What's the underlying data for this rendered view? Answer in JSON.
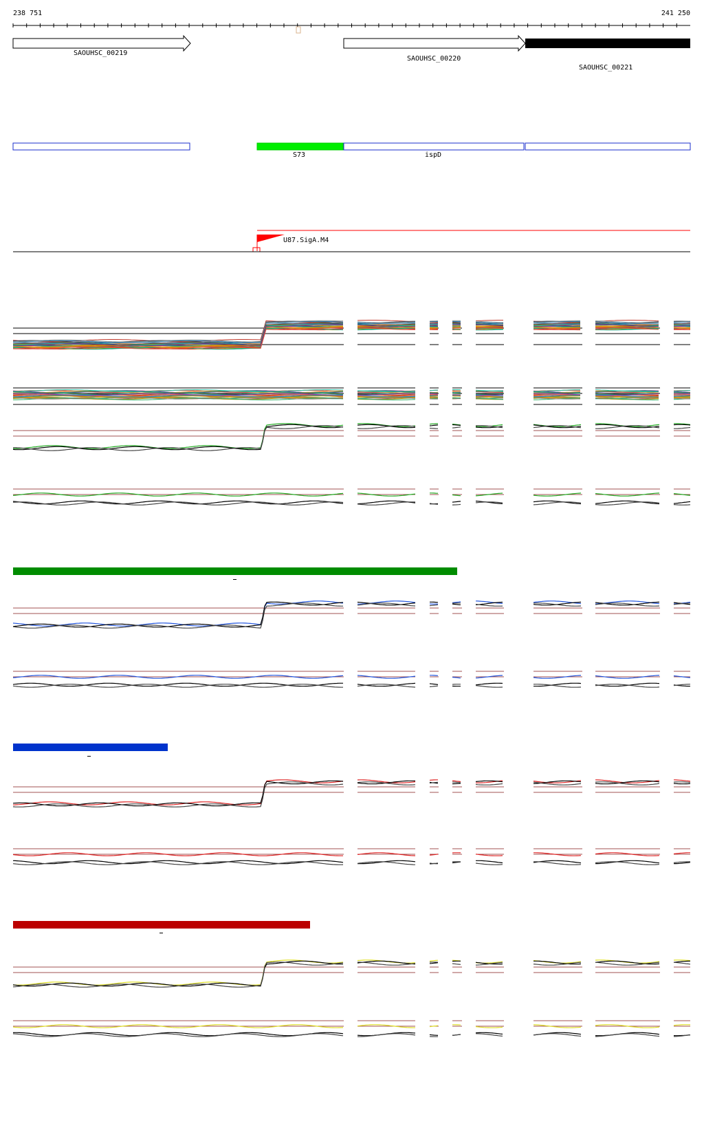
{
  "ruler": {
    "start_label": "238 751",
    "end_label": "241 250"
  },
  "genes": [
    {
      "name": "SAOUHSC_00219",
      "style": "outline"
    },
    {
      "name": "SAOUHSC_00220",
      "style": "outline"
    },
    {
      "name": "SAOUHSC_00221",
      "style": "filled"
    }
  ],
  "segments": [
    {
      "label": ""
    },
    {
      "label": "S73",
      "color": "#00ee00"
    },
    {
      "label": "ispD"
    },
    {
      "label": ""
    }
  ],
  "promoter": {
    "label": "U87.SigA.M4",
    "color": "#ff0000"
  },
  "condition_bars": [
    {
      "color": "#008c00"
    },
    {
      "color": "#0033cc"
    },
    {
      "color": "#bb0000"
    }
  ],
  "track_colors": {
    "heatmap_palette": [
      "#c0392b",
      "#e67e22",
      "#27ae60",
      "#2980b9",
      "#8e44ad",
      "#16a085",
      "#d35400",
      "#7f8c8d",
      "#b7950b",
      "#1abc9c",
      "#e74c3c",
      "#2c3e50",
      "#f39c12",
      "#6c3483"
    ],
    "green": "#22aa22",
    "blue": "#2255dd",
    "red": "#dd2222",
    "yellow": "#dddd22",
    "guide": "#a05050"
  }
}
